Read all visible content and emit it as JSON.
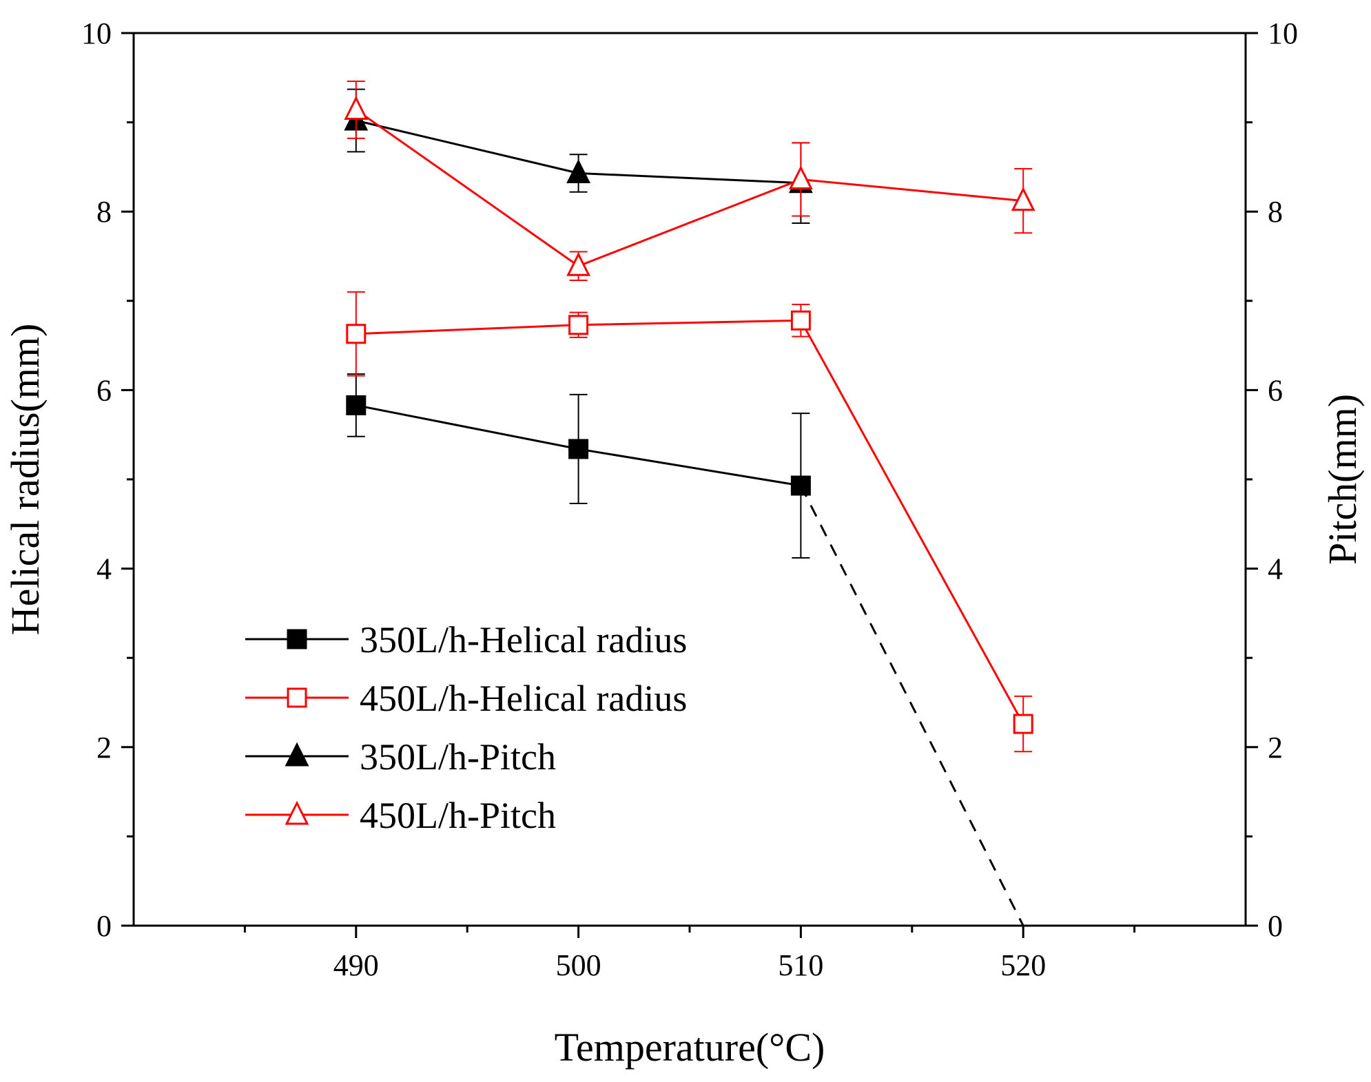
{
  "chart_data": {
    "type": "line",
    "title": "",
    "xlabel": "Temperature(°C)",
    "ylabel_left": "Helical radius(mm)",
    "ylabel_right": "Pitch(mm)",
    "xlim": [
      480,
      530
    ],
    "ylim_left": [
      0,
      10
    ],
    "ylim_right": [
      0,
      10
    ],
    "x_ticks": [
      490,
      500,
      510,
      520
    ],
    "x_tick_labels": [
      "490",
      "500",
      "510",
      "520"
    ],
    "y_ticks_left": [
      0,
      2,
      4,
      6,
      8,
      10
    ],
    "y_tick_labels_left": [
      "0",
      "2",
      "4",
      "6",
      "8",
      "10"
    ],
    "y_ticks_right": [
      0,
      2,
      4,
      6,
      8,
      10
    ],
    "y_tick_labels_right": [
      "0",
      "2",
      "4",
      "6",
      "8",
      "10"
    ],
    "grid": false,
    "legend_position": "bottom-left",
    "series": [
      {
        "name": "350L/h-Helical radius",
        "color": "#000000",
        "marker": "square-filled",
        "axis": "left",
        "x": [
          490,
          500,
          510
        ],
        "values": [
          5.83,
          5.34,
          4.93
        ],
        "errors": [
          0.35,
          0.61,
          0.81
        ]
      },
      {
        "name": "450L/h-Helical radius",
        "color": "#ff0000",
        "marker": "square-open",
        "axis": "left",
        "x": [
          490,
          500,
          510,
          520
        ],
        "values": [
          6.63,
          6.73,
          6.78,
          2.26
        ],
        "errors": [
          0.47,
          0.14,
          0.18,
          0.31
        ]
      },
      {
        "name": "350L/h-Pitch",
        "color": "#000000",
        "marker": "triangle-filled",
        "axis": "right",
        "x": [
          490,
          500,
          510
        ],
        "values": [
          9.02,
          8.43,
          8.32
        ],
        "errors": [
          0.35,
          0.21,
          0.45
        ]
      },
      {
        "name": "450L/h-Pitch",
        "color": "#ff0000",
        "marker": "triangle-open",
        "axis": "right",
        "x": [
          490,
          500,
          510,
          520
        ],
        "values": [
          9.14,
          7.39,
          8.36,
          8.12
        ],
        "errors": [
          0.32,
          0.16,
          0.41,
          0.36
        ]
      }
    ],
    "extrapolation": {
      "series": "350L/h-Helical radius",
      "style": "dashed",
      "color": "#000000",
      "x": [
        510,
        520
      ],
      "values": [
        4.93,
        0
      ]
    }
  }
}
